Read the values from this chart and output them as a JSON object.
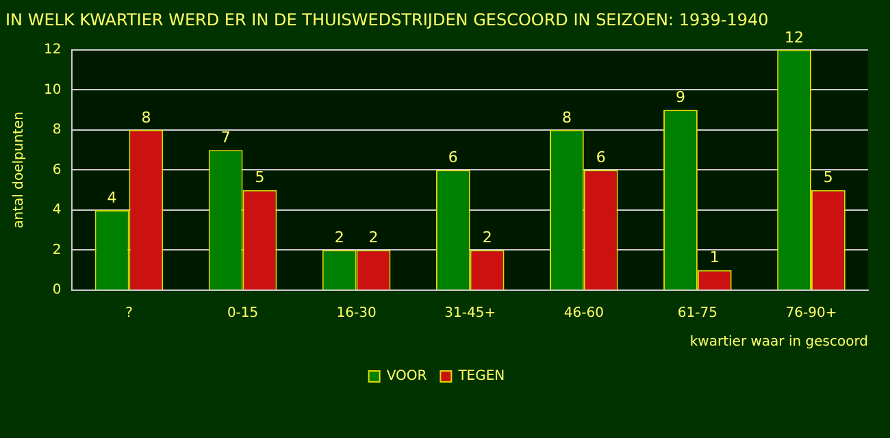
{
  "chart_data": {
    "type": "bar",
    "title": "IN WELK KWARTIER WERD ER IN DE THUISWEDSTRIJDEN GESCOORD IN SEIZOEN: 1939-1940",
    "xlabel": "kwartier waar in gescoord",
    "ylabel": "antal doelpunten",
    "categories": [
      "?",
      "0-15",
      "16-30",
      "31-45+",
      "46-60",
      "61-75",
      "76-90+"
    ],
    "series": [
      {
        "name": "VOOR",
        "color": "#008000",
        "values": [
          4,
          7,
          2,
          6,
          8,
          9,
          12
        ]
      },
      {
        "name": "TEGEN",
        "color": "#cc1111",
        "values": [
          8,
          5,
          2,
          2,
          6,
          1,
          5
        ]
      }
    ],
    "ylim": [
      0,
      12
    ],
    "yticks": [
      0,
      2,
      4,
      6,
      8,
      10,
      12
    ],
    "grid": "y",
    "legend": "bottom",
    "data_labels": true
  }
}
